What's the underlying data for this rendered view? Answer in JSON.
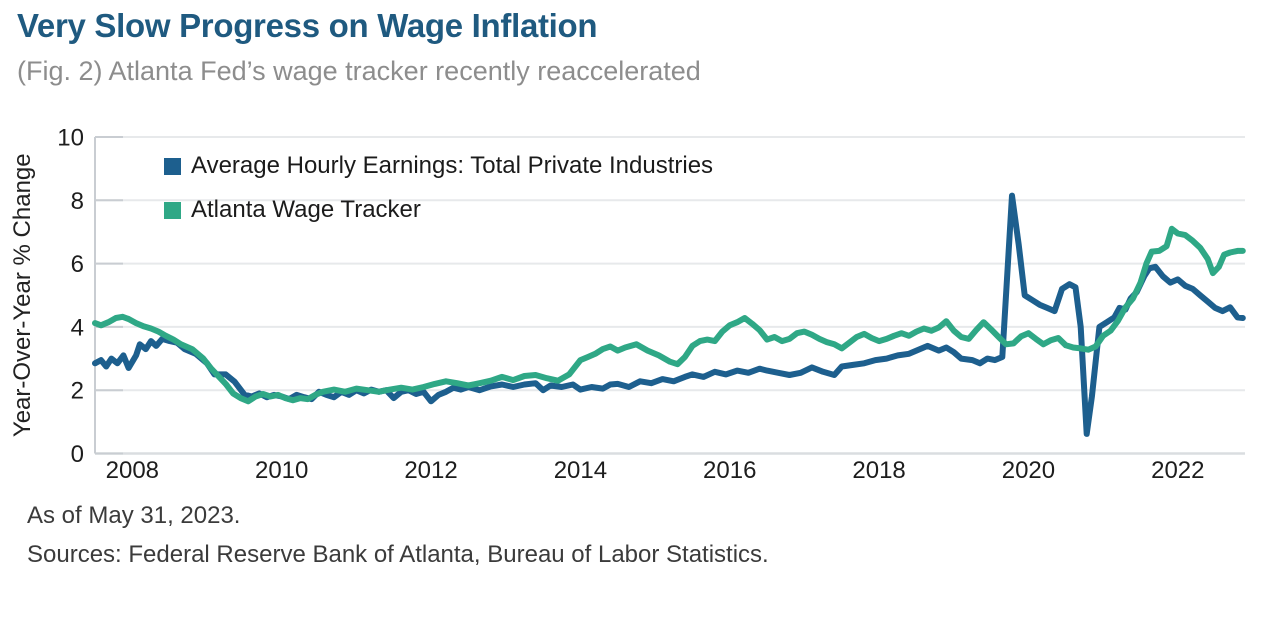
{
  "header": {
    "title": "Very Slow Progress on Wage Inflation",
    "subtitle": "(Fig. 2) Atlanta Fed’s wage tracker recently reaccelerated"
  },
  "colors": {
    "title_accent": "#1f5a80",
    "subtitle_gray": "#8d8d8d",
    "ahe_blue": "#1d5f8e",
    "tracker_green": "#2fa886",
    "gridline": "#e7e9eb",
    "axis": "#c9cdd2",
    "tick_text": "#1d1d1d"
  },
  "chart_data": {
    "type": "line",
    "title": "Very Slow Progress on Wage Inflation",
    "xlabel": "",
    "ylabel": "Year-Over-Year % Change",
    "ylim": [
      0,
      10
    ],
    "xlim": [
      2008.0,
      2023.4
    ],
    "y_ticks": [
      0,
      2,
      4,
      6,
      8,
      10
    ],
    "x_ticks": [
      2008,
      2010,
      2012,
      2014,
      2016,
      2018,
      2020,
      2022
    ],
    "x_tick_note": "year labels centered at mid-year",
    "grid": true,
    "legend_position": "top-left-inside",
    "as_of": "May 31, 2023",
    "series": [
      {
        "id": "average-hourly-earnings",
        "name": "Average Hourly Earnings: Total Private Industries",
        "color": "#1d5f8e",
        "points": [
          [
            2008.0,
            2.85
          ],
          [
            2008.08,
            2.95
          ],
          [
            2008.15,
            2.75
          ],
          [
            2008.22,
            3.0
          ],
          [
            2008.3,
            2.85
          ],
          [
            2008.38,
            3.1
          ],
          [
            2008.45,
            2.7
          ],
          [
            2008.55,
            3.1
          ],
          [
            2008.6,
            3.45
          ],
          [
            2008.68,
            3.3
          ],
          [
            2008.75,
            3.55
          ],
          [
            2008.82,
            3.4
          ],
          [
            2008.9,
            3.62
          ],
          [
            2009.0,
            3.55
          ],
          [
            2009.1,
            3.5
          ],
          [
            2009.2,
            3.3
          ],
          [
            2009.35,
            3.15
          ],
          [
            2009.5,
            2.85
          ],
          [
            2009.6,
            2.5
          ],
          [
            2009.75,
            2.5
          ],
          [
            2009.87,
            2.27
          ],
          [
            2010.0,
            1.86
          ],
          [
            2010.1,
            1.8
          ],
          [
            2010.2,
            1.9
          ],
          [
            2010.3,
            1.78
          ],
          [
            2010.4,
            1.85
          ],
          [
            2010.5,
            1.8
          ],
          [
            2010.6,
            1.72
          ],
          [
            2010.7,
            1.85
          ],
          [
            2010.8,
            1.78
          ],
          [
            2010.9,
            1.72
          ],
          [
            2011.0,
            1.95
          ],
          [
            2011.1,
            1.85
          ],
          [
            2011.2,
            1.78
          ],
          [
            2011.3,
            1.95
          ],
          [
            2011.4,
            1.85
          ],
          [
            2011.5,
            2.0
          ],
          [
            2011.6,
            1.9
          ],
          [
            2011.7,
            2.02
          ],
          [
            2011.8,
            1.95
          ],
          [
            2011.9,
            2.0
          ],
          [
            2012.0,
            1.75
          ],
          [
            2012.1,
            1.95
          ],
          [
            2012.2,
            2.0
          ],
          [
            2012.3,
            1.88
          ],
          [
            2012.4,
            1.95
          ],
          [
            2012.5,
            1.65
          ],
          [
            2012.6,
            1.85
          ],
          [
            2012.7,
            1.95
          ],
          [
            2012.8,
            2.08
          ],
          [
            2012.9,
            2.02
          ],
          [
            2013.0,
            2.1
          ],
          [
            2013.15,
            2.0
          ],
          [
            2013.3,
            2.12
          ],
          [
            2013.45,
            2.18
          ],
          [
            2013.6,
            2.1
          ],
          [
            2013.75,
            2.18
          ],
          [
            2013.9,
            2.22
          ],
          [
            2014.0,
            2.0
          ],
          [
            2014.1,
            2.15
          ],
          [
            2014.25,
            2.1
          ],
          [
            2014.4,
            2.18
          ],
          [
            2014.5,
            2.02
          ],
          [
            2014.65,
            2.1
          ],
          [
            2014.8,
            2.05
          ],
          [
            2014.9,
            2.18
          ],
          [
            2015.0,
            2.2
          ],
          [
            2015.15,
            2.1
          ],
          [
            2015.3,
            2.28
          ],
          [
            2015.45,
            2.22
          ],
          [
            2015.6,
            2.35
          ],
          [
            2015.75,
            2.28
          ],
          [
            2015.9,
            2.42
          ],
          [
            2016.0,
            2.5
          ],
          [
            2016.15,
            2.42
          ],
          [
            2016.3,
            2.58
          ],
          [
            2016.45,
            2.5
          ],
          [
            2016.6,
            2.62
          ],
          [
            2016.75,
            2.55
          ],
          [
            2016.9,
            2.68
          ],
          [
            2017.0,
            2.62
          ],
          [
            2017.15,
            2.55
          ],
          [
            2017.3,
            2.48
          ],
          [
            2017.45,
            2.55
          ],
          [
            2017.6,
            2.72
          ],
          [
            2017.75,
            2.58
          ],
          [
            2017.9,
            2.48
          ],
          [
            2018.0,
            2.75
          ],
          [
            2018.15,
            2.8
          ],
          [
            2018.3,
            2.85
          ],
          [
            2018.45,
            2.95
          ],
          [
            2018.6,
            3.0
          ],
          [
            2018.75,
            3.1
          ],
          [
            2018.9,
            3.15
          ],
          [
            2019.0,
            3.25
          ],
          [
            2019.15,
            3.4
          ],
          [
            2019.3,
            3.25
          ],
          [
            2019.4,
            3.35
          ],
          [
            2019.5,
            3.2
          ],
          [
            2019.6,
            3.0
          ],
          [
            2019.75,
            2.95
          ],
          [
            2019.85,
            2.85
          ],
          [
            2019.95,
            3.0
          ],
          [
            2020.05,
            2.95
          ],
          [
            2020.15,
            3.05
          ],
          [
            2020.28,
            8.15
          ],
          [
            2020.37,
            6.6
          ],
          [
            2020.45,
            5.0
          ],
          [
            2020.55,
            4.85
          ],
          [
            2020.65,
            4.7
          ],
          [
            2020.75,
            4.6
          ],
          [
            2020.85,
            4.5
          ],
          [
            2020.95,
            5.2
          ],
          [
            2021.05,
            5.35
          ],
          [
            2021.13,
            5.25
          ],
          [
            2021.2,
            4.0
          ],
          [
            2021.28,
            0.62
          ],
          [
            2021.35,
            1.8
          ],
          [
            2021.45,
            4.0
          ],
          [
            2021.55,
            4.15
          ],
          [
            2021.65,
            4.3
          ],
          [
            2021.72,
            4.6
          ],
          [
            2021.8,
            4.55
          ],
          [
            2021.87,
            4.9
          ],
          [
            2021.95,
            5.1
          ],
          [
            2022.05,
            5.6
          ],
          [
            2022.12,
            5.85
          ],
          [
            2022.2,
            5.9
          ],
          [
            2022.3,
            5.6
          ],
          [
            2022.4,
            5.4
          ],
          [
            2022.5,
            5.5
          ],
          [
            2022.6,
            5.3
          ],
          [
            2022.7,
            5.2
          ],
          [
            2022.8,
            5.0
          ],
          [
            2022.9,
            4.8
          ],
          [
            2023.0,
            4.6
          ],
          [
            2023.1,
            4.5
          ],
          [
            2023.2,
            4.62
          ],
          [
            2023.3,
            4.3
          ],
          [
            2023.37,
            4.28
          ]
        ]
      },
      {
        "id": "atlanta-wage-tracker",
        "name": "Atlanta Wage Tracker",
        "color": "#2fa886",
        "points": [
          [
            2008.0,
            4.12
          ],
          [
            2008.08,
            4.05
          ],
          [
            2008.18,
            4.15
          ],
          [
            2008.28,
            4.28
          ],
          [
            2008.37,
            4.32
          ],
          [
            2008.45,
            4.25
          ],
          [
            2008.55,
            4.12
          ],
          [
            2008.65,
            4.02
          ],
          [
            2008.75,
            3.95
          ],
          [
            2008.85,
            3.85
          ],
          [
            2008.95,
            3.72
          ],
          [
            2009.05,
            3.6
          ],
          [
            2009.15,
            3.45
          ],
          [
            2009.3,
            3.3
          ],
          [
            2009.45,
            3.0
          ],
          [
            2009.55,
            2.7
          ],
          [
            2009.65,
            2.45
          ],
          [
            2009.75,
            2.2
          ],
          [
            2009.85,
            1.9
          ],
          [
            2009.95,
            1.75
          ],
          [
            2010.05,
            1.65
          ],
          [
            2010.15,
            1.8
          ],
          [
            2010.25,
            1.88
          ],
          [
            2010.35,
            1.8
          ],
          [
            2010.45,
            1.85
          ],
          [
            2010.55,
            1.75
          ],
          [
            2010.65,
            1.68
          ],
          [
            2010.75,
            1.75
          ],
          [
            2010.85,
            1.72
          ],
          [
            2010.95,
            1.85
          ],
          [
            2011.05,
            1.95
          ],
          [
            2011.2,
            2.02
          ],
          [
            2011.35,
            1.95
          ],
          [
            2011.5,
            2.05
          ],
          [
            2011.65,
            2.0
          ],
          [
            2011.8,
            1.95
          ],
          [
            2011.95,
            2.02
          ],
          [
            2012.1,
            2.08
          ],
          [
            2012.25,
            2.02
          ],
          [
            2012.4,
            2.1
          ],
          [
            2012.55,
            2.2
          ],
          [
            2012.7,
            2.28
          ],
          [
            2012.85,
            2.22
          ],
          [
            2013.0,
            2.15
          ],
          [
            2013.15,
            2.22
          ],
          [
            2013.3,
            2.3
          ],
          [
            2013.45,
            2.42
          ],
          [
            2013.6,
            2.32
          ],
          [
            2013.75,
            2.45
          ],
          [
            2013.9,
            2.48
          ],
          [
            2014.05,
            2.38
          ],
          [
            2014.2,
            2.3
          ],
          [
            2014.35,
            2.5
          ],
          [
            2014.5,
            2.95
          ],
          [
            2014.6,
            3.05
          ],
          [
            2014.7,
            3.15
          ],
          [
            2014.8,
            3.3
          ],
          [
            2014.9,
            3.38
          ],
          [
            2015.0,
            3.25
          ],
          [
            2015.1,
            3.35
          ],
          [
            2015.25,
            3.45
          ],
          [
            2015.4,
            3.25
          ],
          [
            2015.55,
            3.1
          ],
          [
            2015.7,
            2.9
          ],
          [
            2015.8,
            2.82
          ],
          [
            2015.9,
            3.05
          ],
          [
            2016.0,
            3.4
          ],
          [
            2016.1,
            3.55
          ],
          [
            2016.2,
            3.6
          ],
          [
            2016.3,
            3.55
          ],
          [
            2016.4,
            3.85
          ],
          [
            2016.5,
            4.05
          ],
          [
            2016.6,
            4.15
          ],
          [
            2016.7,
            4.28
          ],
          [
            2016.8,
            4.1
          ],
          [
            2016.9,
            3.9
          ],
          [
            2017.0,
            3.6
          ],
          [
            2017.1,
            3.68
          ],
          [
            2017.2,
            3.55
          ],
          [
            2017.3,
            3.62
          ],
          [
            2017.4,
            3.8
          ],
          [
            2017.5,
            3.85
          ],
          [
            2017.6,
            3.75
          ],
          [
            2017.7,
            3.62
          ],
          [
            2017.8,
            3.52
          ],
          [
            2017.9,
            3.45
          ],
          [
            2018.0,
            3.32
          ],
          [
            2018.1,
            3.5
          ],
          [
            2018.2,
            3.68
          ],
          [
            2018.3,
            3.78
          ],
          [
            2018.4,
            3.65
          ],
          [
            2018.5,
            3.55
          ],
          [
            2018.6,
            3.62
          ],
          [
            2018.7,
            3.72
          ],
          [
            2018.8,
            3.8
          ],
          [
            2018.9,
            3.72
          ],
          [
            2019.0,
            3.85
          ],
          [
            2019.1,
            3.95
          ],
          [
            2019.2,
            3.88
          ],
          [
            2019.3,
            3.98
          ],
          [
            2019.4,
            4.18
          ],
          [
            2019.5,
            3.88
          ],
          [
            2019.6,
            3.68
          ],
          [
            2019.7,
            3.62
          ],
          [
            2019.8,
            3.9
          ],
          [
            2019.9,
            4.15
          ],
          [
            2020.0,
            3.92
          ],
          [
            2020.1,
            3.68
          ],
          [
            2020.2,
            3.45
          ],
          [
            2020.3,
            3.48
          ],
          [
            2020.4,
            3.7
          ],
          [
            2020.5,
            3.8
          ],
          [
            2020.6,
            3.62
          ],
          [
            2020.7,
            3.45
          ],
          [
            2020.8,
            3.58
          ],
          [
            2020.9,
            3.65
          ],
          [
            2021.0,
            3.42
          ],
          [
            2021.1,
            3.35
          ],
          [
            2021.2,
            3.32
          ],
          [
            2021.3,
            3.28
          ],
          [
            2021.4,
            3.38
          ],
          [
            2021.5,
            3.72
          ],
          [
            2021.6,
            3.88
          ],
          [
            2021.7,
            4.2
          ],
          [
            2021.8,
            4.62
          ],
          [
            2021.9,
            4.9
          ],
          [
            2022.0,
            5.4
          ],
          [
            2022.08,
            6.0
          ],
          [
            2022.15,
            6.38
          ],
          [
            2022.25,
            6.4
          ],
          [
            2022.35,
            6.55
          ],
          [
            2022.42,
            7.1
          ],
          [
            2022.5,
            6.95
          ],
          [
            2022.6,
            6.9
          ],
          [
            2022.7,
            6.72
          ],
          [
            2022.8,
            6.5
          ],
          [
            2022.9,
            6.15
          ],
          [
            2022.97,
            5.7
          ],
          [
            2023.05,
            5.9
          ],
          [
            2023.12,
            6.28
          ],
          [
            2023.2,
            6.35
          ],
          [
            2023.3,
            6.4
          ],
          [
            2023.37,
            6.4
          ]
        ]
      }
    ]
  },
  "footnotes": {
    "as_of": "As of May 31, 2023.",
    "sources": "Sources: Federal Reserve Bank of Atlanta, Bureau of Labor Statistics."
  }
}
